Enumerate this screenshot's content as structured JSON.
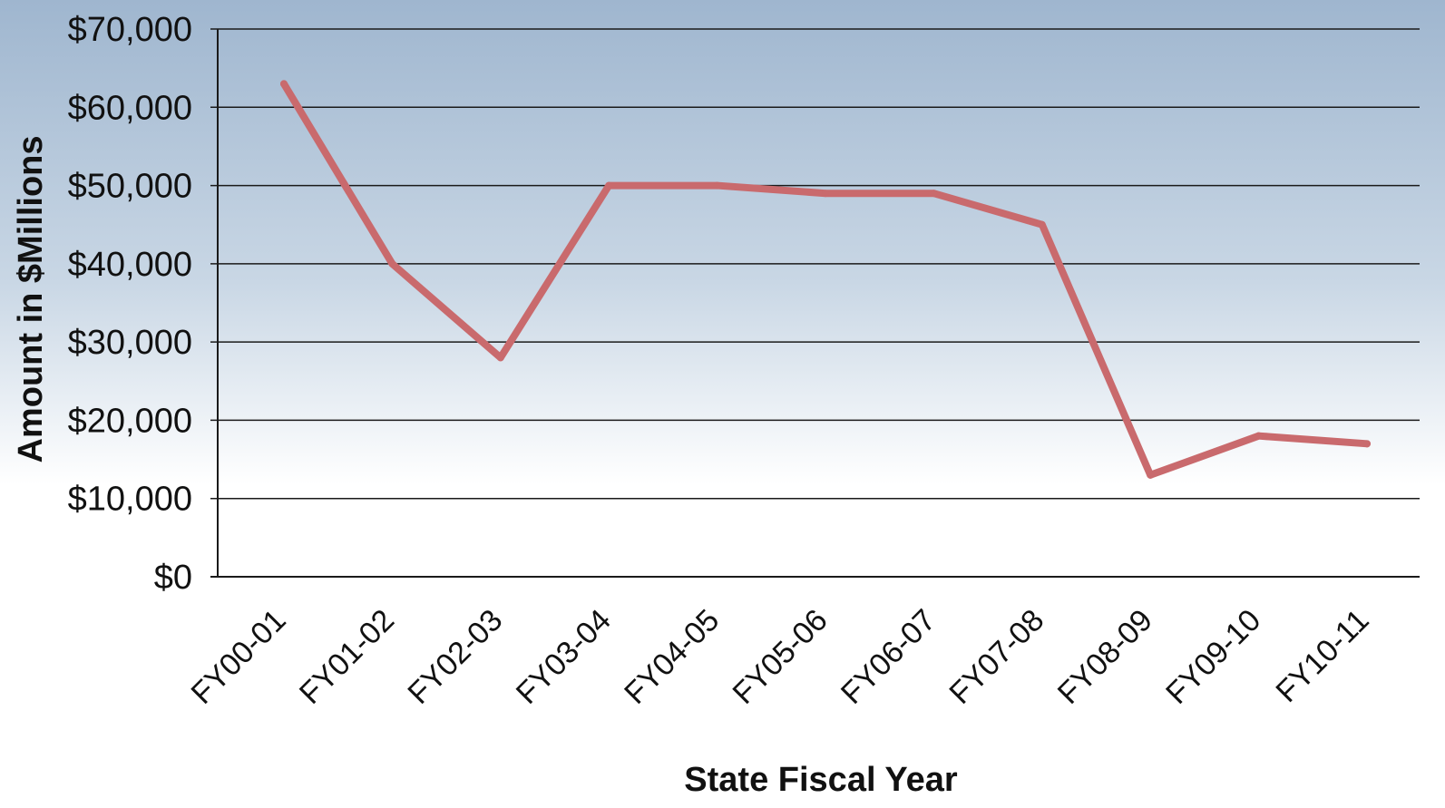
{
  "chart_data": {
    "type": "line",
    "title": "",
    "xlabel": "State Fiscal Year",
    "ylabel": "Amount in $Millions",
    "categories": [
      "FY00-01",
      "FY01-02",
      "FY02-03",
      "FY03-04",
      "FY04-05",
      "FY05-06",
      "FY06-07",
      "FY07-08",
      "FY08-09",
      "FY09-10",
      "FY10-11"
    ],
    "series": [
      {
        "values": [
          63000,
          40000,
          28000,
          50000,
          50000,
          49000,
          49000,
          45000,
          13000,
          18000,
          17000
        ]
      }
    ],
    "ylim": [
      0,
      70000
    ],
    "yticks": [
      0,
      10000,
      20000,
      30000,
      40000,
      50000,
      60000,
      70000
    ],
    "ytick_labels": [
      "$0",
      "$10,000",
      "$20,000",
      "$30,000",
      "$40,000",
      "$50,000",
      "$60,000",
      "$70,000"
    ],
    "grid": true,
    "legend": "none",
    "colors": {
      "line": "#c96a6d",
      "grid": "#1a1a1a",
      "background_top": "#9fb6cf",
      "background_bottom": "#ffffff"
    }
  }
}
